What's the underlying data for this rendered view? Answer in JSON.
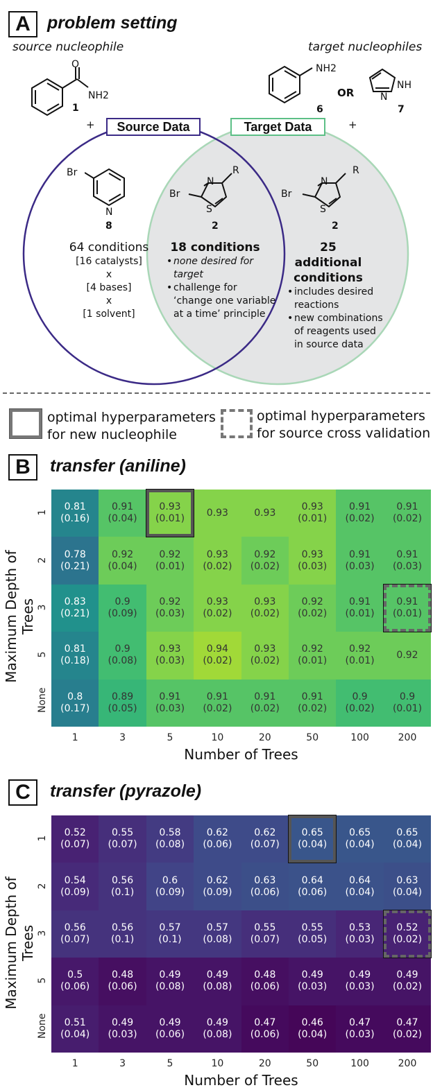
{
  "panelA": {
    "letter": "A",
    "title": "problem setting",
    "source_label": "source nucleophile",
    "target_label": "target nucleophiles",
    "or_label": "OR",
    "plus": "+",
    "compounds": {
      "c1": {
        "num": "1",
        "group": "NH2",
        "atom": "O"
      },
      "c6": {
        "num": "6",
        "group": "NH2"
      },
      "c7": {
        "num": "7",
        "atom_nh": "NH",
        "atom_n": "N"
      },
      "c8": {
        "num": "8",
        "br": "Br",
        "n": "N"
      },
      "c2": {
        "num": "2",
        "br": "Br",
        "n": "N",
        "s": "S",
        "r": "R"
      }
    },
    "source_box": "Source Data",
    "target_box": "Target Data",
    "source_conditions": {
      "heading": "64 conditions",
      "lines": [
        "[16 catalysts]",
        "x",
        "[4 bases]",
        "x",
        "[1 solvent]"
      ]
    },
    "overlap_conditions": {
      "heading": "18 conditions",
      "bullets": [
        {
          "text": "none desired for target",
          "italic": true
        },
        {
          "text": "challenge for ‘change one variable at a time’ principle",
          "italic": false
        }
      ]
    },
    "target_conditions": {
      "heading": "25 additional conditions",
      "bullets": [
        {
          "text": "includes desired reactions"
        },
        {
          "text": "new combinations of reagents used in source data"
        }
      ]
    },
    "colors": {
      "source_ring": "#3b2a86",
      "target_ring": "#a9d7b7",
      "target_fill": "#e4e5e6"
    }
  },
  "legend": {
    "solid": "optimal hyperparameters for new nucleophile",
    "dashed": "optimal hyperparameters for source cross validation"
  },
  "panelB": {
    "letter": "B",
    "title": "transfer (aniline)",
    "ylabel": "Maximum Depth of Trees",
    "xlabel": "Number of Trees",
    "rows": [
      "1",
      "2",
      "3",
      "5",
      "None"
    ],
    "cols": [
      "1",
      "3",
      "5",
      "10",
      "20",
      "50",
      "100",
      "200"
    ],
    "means": [
      [
        "0.81",
        "0.91",
        "0.93",
        "0.93",
        "0.93",
        "0.93",
        "0.91",
        "0.91"
      ],
      [
        "0.78",
        "0.92",
        "0.92",
        "0.93",
        "0.92",
        "0.93",
        "0.91",
        "0.91"
      ],
      [
        "0.83",
        "0.9",
        "0.92",
        "0.93",
        "0.93",
        "0.92",
        "0.91",
        "0.91"
      ],
      [
        "0.81",
        "0.9",
        "0.93",
        "0.94",
        "0.93",
        "0.92",
        "0.92",
        "0.92"
      ],
      [
        "0.8",
        "0.89",
        "0.91",
        "0.91",
        "0.91",
        "0.91",
        "0.9",
        "0.9"
      ]
    ],
    "stds": [
      [
        "(0.16)",
        "(0.04)",
        "(0.01)",
        "",
        "",
        "(0.01)",
        "(0.02)",
        "(0.02)"
      ],
      [
        "(0.21)",
        "(0.04)",
        "(0.01)",
        "(0.02)",
        "(0.02)",
        "(0.03)",
        "(0.03)",
        "(0.03)"
      ],
      [
        "(0.21)",
        "(0.09)",
        "(0.03)",
        "(0.02)",
        "(0.02)",
        "(0.02)",
        "(0.01)",
        "(0.01)"
      ],
      [
        "(0.18)",
        "(0.08)",
        "(0.03)",
        "(0.02)",
        "(0.02)",
        "(0.01)",
        "(0.01)",
        ""
      ],
      [
        "(0.17)",
        "(0.05)",
        "(0.03)",
        "(0.02)",
        "(0.02)",
        "(0.02)",
        "(0.02)",
        "(0.01)"
      ]
    ],
    "solid_cell": {
      "row": 0,
      "col": 2
    },
    "dashed_cell": {
      "row": 2,
      "col": 7
    }
  },
  "panelC": {
    "letter": "C",
    "title": "transfer (pyrazole)",
    "ylabel": "Maximum Depth of Trees",
    "xlabel": "Number of Trees",
    "rows": [
      "1",
      "2",
      "3",
      "5",
      "None"
    ],
    "cols": [
      "1",
      "3",
      "5",
      "10",
      "20",
      "50",
      "100",
      "200"
    ],
    "means": [
      [
        "0.52",
        "0.55",
        "0.58",
        "0.62",
        "0.62",
        "0.65",
        "0.65",
        "0.65"
      ],
      [
        "0.54",
        "0.56",
        "0.6",
        "0.62",
        "0.63",
        "0.64",
        "0.64",
        "0.63"
      ],
      [
        "0.56",
        "0.56",
        "0.57",
        "0.57",
        "0.55",
        "0.55",
        "0.53",
        "0.52"
      ],
      [
        "0.5",
        "0.48",
        "0.49",
        "0.49",
        "0.48",
        "0.49",
        "0.49",
        "0.49"
      ],
      [
        "0.51",
        "0.49",
        "0.49",
        "0.49",
        "0.47",
        "0.46",
        "0.47",
        "0.47"
      ]
    ],
    "stds": [
      [
        "(0.07)",
        "(0.07)",
        "(0.08)",
        "(0.06)",
        "(0.07)",
        "(0.04)",
        "(0.04)",
        "(0.04)"
      ],
      [
        "(0.09)",
        "(0.1)",
        "(0.09)",
        "(0.09)",
        "(0.06)",
        "(0.06)",
        "(0.04)",
        "(0.04)"
      ],
      [
        "(0.07)",
        "(0.1)",
        "(0.1)",
        "(0.08)",
        "(0.07)",
        "(0.05)",
        "(0.03)",
        "(0.02)"
      ],
      [
        "(0.06)",
        "(0.06)",
        "(0.08)",
        "(0.08)",
        "(0.06)",
        "(0.03)",
        "(0.03)",
        "(0.02)"
      ],
      [
        "(0.04)",
        "(0.03)",
        "(0.06)",
        "(0.08)",
        "(0.06)",
        "(0.04)",
        "(0.03)",
        "(0.02)"
      ]
    ],
    "solid_cell": {
      "row": 0,
      "col": 5
    },
    "dashed_cell": {
      "row": 2,
      "col": 7
    }
  }
}
